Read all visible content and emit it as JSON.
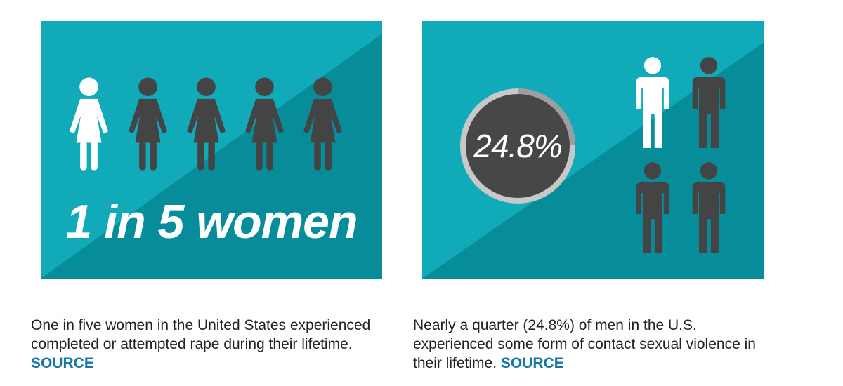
{
  "women_panel": {
    "headline": "1 in 5 women",
    "figures": [
      "white",
      "dark",
      "dark",
      "dark",
      "dark"
    ],
    "caption": "One in five women in the United States experienced completed or attempted rape during their lifetime.",
    "source_label": "SOURCE"
  },
  "men_panel": {
    "stat": "24.8%",
    "stat_value": 24.8,
    "figures": [
      "white",
      "dark",
      "dark",
      "dark"
    ],
    "caption": "Nearly a quarter (24.8%) of men in the U.S. experienced some form of contact sexual violence in their lifetime.",
    "source_label": "SOURCE"
  },
  "colors": {
    "teal_light": "#11aab9",
    "teal_dark": "#068d99",
    "figure_white": "#ffffff",
    "figure_dark": "#444444",
    "ring": "#a8a8a8",
    "link": "#1576a8",
    "text": "#222222"
  }
}
